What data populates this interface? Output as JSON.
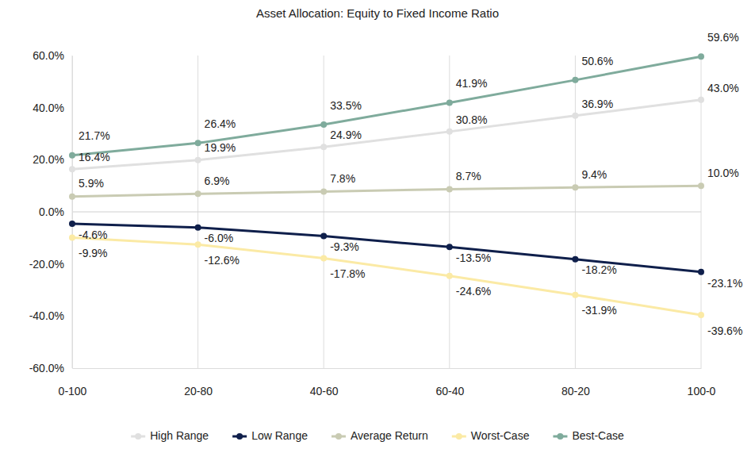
{
  "chart_data": {
    "type": "line",
    "title": "Asset Allocation: Equity to Fixed Income Ratio",
    "categories": [
      "0-100",
      "20-80",
      "40-60",
      "60-40",
      "80-20",
      "100-0"
    ],
    "ylim": [
      -60,
      60
    ],
    "yticks": [
      {
        "value": -60,
        "label": "-60.0%"
      },
      {
        "value": -40,
        "label": "-40.0%"
      },
      {
        "value": -20,
        "label": "-20.0%"
      },
      {
        "value": 0,
        "label": "0.0%"
      },
      {
        "value": 20,
        "label": "20.0%"
      },
      {
        "value": 40,
        "label": "40.0%"
      },
      {
        "value": 60,
        "label": "60.0%"
      }
    ],
    "grid": true,
    "legend": "bottom",
    "data_labels": true,
    "marker": "circle",
    "series": [
      {
        "name": "High Range",
        "color": "#e0e0e0",
        "values": [
          16.4,
          19.9,
          24.9,
          30.8,
          36.9,
          43.0
        ],
        "value_labels": [
          "16.4%",
          "19.9%",
          "24.9%",
          "30.8%",
          "36.9%",
          "43.0%"
        ]
      },
      {
        "name": "Low Range",
        "color": "#0f1f4b",
        "values": [
          -4.6,
          -6.0,
          -9.3,
          -13.5,
          -18.2,
          -23.1
        ],
        "value_labels": [
          "-4.6%",
          "-6.0%",
          "-9.3%",
          "-13.5%",
          "-18.2%",
          "-23.1%"
        ]
      },
      {
        "name": "Average Return",
        "color": "#c9cbb3",
        "values": [
          5.9,
          6.9,
          7.8,
          8.7,
          9.4,
          10.0
        ],
        "value_labels": [
          "5.9%",
          "6.9%",
          "7.8%",
          "8.7%",
          "9.4%",
          "10.0%"
        ]
      },
      {
        "name": "Worst-Case",
        "color": "#fbeaa5",
        "values": [
          -9.9,
          -12.6,
          -17.8,
          -24.6,
          -31.9,
          -39.6
        ],
        "value_labels": [
          "-9.9%",
          "-12.6%",
          "-17.8%",
          "-24.6%",
          "-31.9%",
          "-39.6%"
        ]
      },
      {
        "name": "Best-Case",
        "color": "#7fab9c",
        "values": [
          21.7,
          26.4,
          33.5,
          41.9,
          50.6,
          59.6
        ],
        "value_labels": [
          "21.7%",
          "26.4%",
          "33.5%",
          "41.9%",
          "50.6%",
          "59.6%"
        ]
      }
    ]
  }
}
